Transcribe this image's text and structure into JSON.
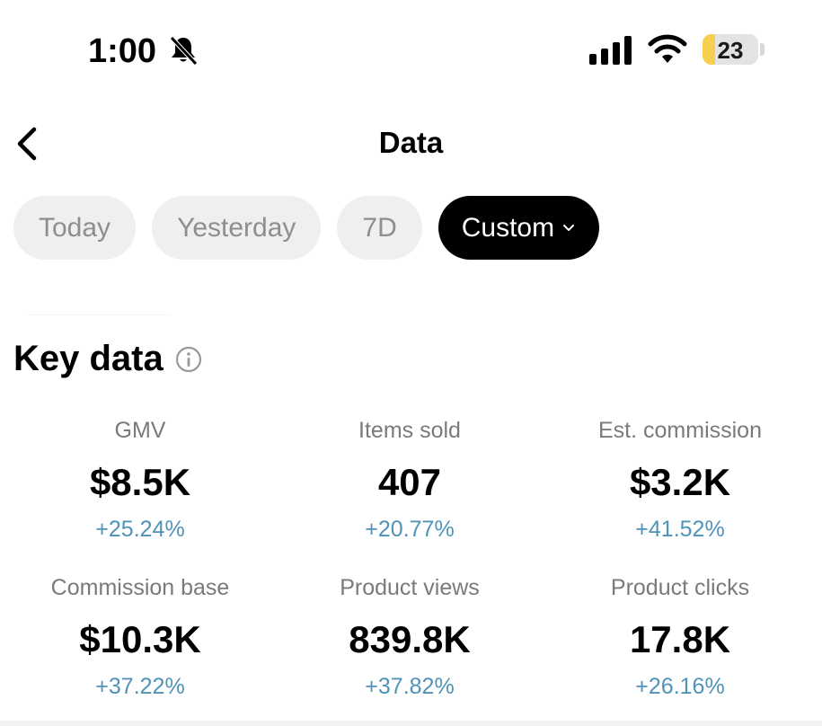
{
  "status_bar": {
    "time": "1:00",
    "battery_level": "23",
    "battery_fraction": 0.23,
    "icons": [
      "bell-muted-icon",
      "cellular-signal-icon",
      "wifi-icon",
      "battery-icon"
    ]
  },
  "header": {
    "title": "Data",
    "back_icon": "chevron-left-icon"
  },
  "filters": {
    "items": [
      "Today",
      "Yesterday",
      "7D",
      "Custom"
    ],
    "selected": "Custom",
    "dropdown_icon": "chevron-down-icon"
  },
  "key_data": {
    "title": "Key data",
    "info_icon": "info-icon",
    "metrics": [
      {
        "label": "GMV",
        "value": "$8.5K",
        "delta": "+25.24%"
      },
      {
        "label": "Items sold",
        "value": "407",
        "delta": "+20.77%"
      },
      {
        "label": "Est. commission",
        "value": "$3.2K",
        "delta": "+41.52%"
      },
      {
        "label": "Commission base",
        "value": "$10.3K",
        "delta": "+37.22%"
      },
      {
        "label": "Product views",
        "value": "839.8K",
        "delta": "+37.82%"
      },
      {
        "label": "Product clicks",
        "value": "17.8K",
        "delta": "+26.16%"
      }
    ]
  },
  "colors": {
    "active_pill": "#000000",
    "inactive_pill": "#efefef",
    "delta_text": "#4f94b8",
    "battery_fill": "#f6cf4f"
  }
}
